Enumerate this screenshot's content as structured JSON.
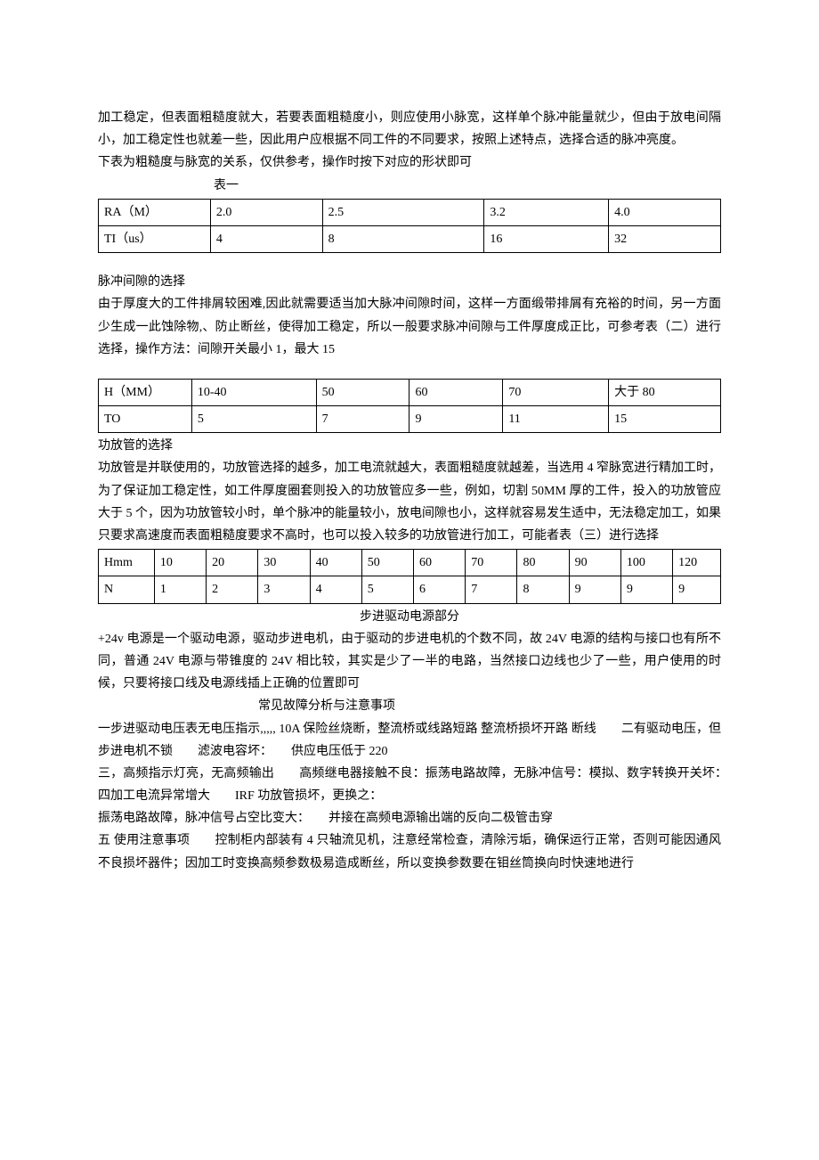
{
  "intro": {
    "p1": "加工稳定，但表面粗糙度就大，若要表面粗糙度小，则应使用小脉宽，这样单个脉冲能量就少，但由于放电间隔小，加工稳定性也就差一些，因此用户应根据不同工件的不同要求，按照上述特点，选择合适的脉冲亮度。",
    "p2": "下表为粗糙度与脉宽的关系，仅供参考，操作时按下对应的形状即可",
    "caption": "表一"
  },
  "table1": {
    "rows": [
      [
        "RA（M）",
        "2.0",
        "2.5",
        "3.2",
        "4.0"
      ],
      [
        "TI（us）",
        "4",
        "8",
        "16",
        "32"
      ]
    ]
  },
  "section2": {
    "title": "脉冲间隙的选择",
    "body": "由于厚度大的工件排屑较困难,因此就需要适当加大脉冲间隙时间，这样一方面缎带排屑有充裕的时间，另一方面少生成一此蚀除物,、防止断丝，使得加工稳定，所以一般要求脉冲间隙与工件厚度成正比，可参考表（二）进行选择，操作方法：间隙开关最小 1，最大 15"
  },
  "table2": {
    "rows": [
      [
        "H（MM）",
        "10-40",
        "50",
        "60",
        "70",
        "大于 80"
      ],
      [
        "TO",
        "5",
        "7",
        "9",
        "11",
        "15"
      ]
    ]
  },
  "section3": {
    "title": "功放管的选择",
    "body": "功放管是并联使用的，功放管选择的越多，加工电流就越大，表面粗糙度就越差，当选用 4 窄脉宽进行精加工时，为了保证加工稳定性，如工件厚度圈套则投入的功放管应多一些，例如，切割 50MM 厚的工件，投入的功放管应大于 5 个，因为功放管较小时，单个脉冲的能量较小，放电间隙也小，这样就容易发生适中，无法稳定加工，如果只要求高速度而表面粗糙度要求不高时，也可以投入较多的功放管进行加工，可能者表（三）进行选择"
  },
  "table3": {
    "rows": [
      [
        "Hmm",
        "10",
        "20",
        "30",
        "40",
        "50",
        "60",
        "70",
        "80",
        "90",
        "100",
        "120"
      ],
      [
        "N",
        "1",
        "2",
        "3",
        "4",
        "5",
        "6",
        "7",
        "8",
        "9",
        "9",
        "9"
      ]
    ]
  },
  "section4": {
    "title": "步进驱动电源部分",
    "body": "+24v 电源是一个驱动电源，驱动步进电机，由于驱动的步进电机的个数不同，故 24V 电源的结构与接口也有所不同，普通 24V 电源与带锥度的 24V 相比较，其实是少了一半的电路，当然接口边线也少了一些，用户使用的时候，只要将接口线及电源线插上正确的位置即可"
  },
  "section5": {
    "title": "常见故障分析与注意事项",
    "p1": "一步进驱动电压表无电压指示,,,,, 10A 保险丝烧断，整流桥或线路短路 整流桥损坏开路 断线　　二有驱动电压，但步进电机不锁　　滤波电容坏：　　供应电压低于 220",
    "p2": "三，高频指示灯亮，无高频输出　　高频继电器接触不良：振荡电路故障，无脉冲信号：模拟、数字转换开关坏：　　四加工电流异常增大　　IRF 功放管损坏，更换之：",
    "p3": "振荡电路故障，脉冲信号占空比变大：　　并接在高频电源输出端的反向二极管击穿",
    "p4": "五 使用注意事项　　控制柜内部装有 4 只轴流见机，注意经常检查，清除污垢，确保运行正常，否则可能因通风不良损坏器件；因加工时变换高频参数极易造成断丝，所以变换参数要在钼丝筒换向时快速地进行"
  }
}
